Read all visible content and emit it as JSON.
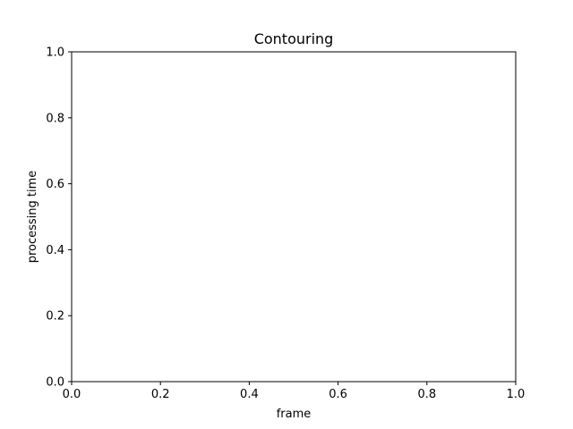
{
  "chart_data": {
    "type": "line",
    "title": "Contouring",
    "xlabel": "frame",
    "ylabel": "processing time",
    "xlim": [
      0.0,
      1.0
    ],
    "ylim": [
      0.0,
      1.0
    ],
    "xticks": [
      0.0,
      0.2,
      0.4,
      0.6,
      0.8,
      1.0
    ],
    "yticks": [
      0.0,
      0.2,
      0.4,
      0.6,
      0.8,
      1.0
    ],
    "xtick_labels": [
      "0.0",
      "0.2",
      "0.4",
      "0.6",
      "0.8",
      "1.0"
    ],
    "ytick_labels": [
      "0.0",
      "0.2",
      "0.4",
      "0.6",
      "0.8",
      "1.0"
    ],
    "grid": false,
    "series": []
  }
}
